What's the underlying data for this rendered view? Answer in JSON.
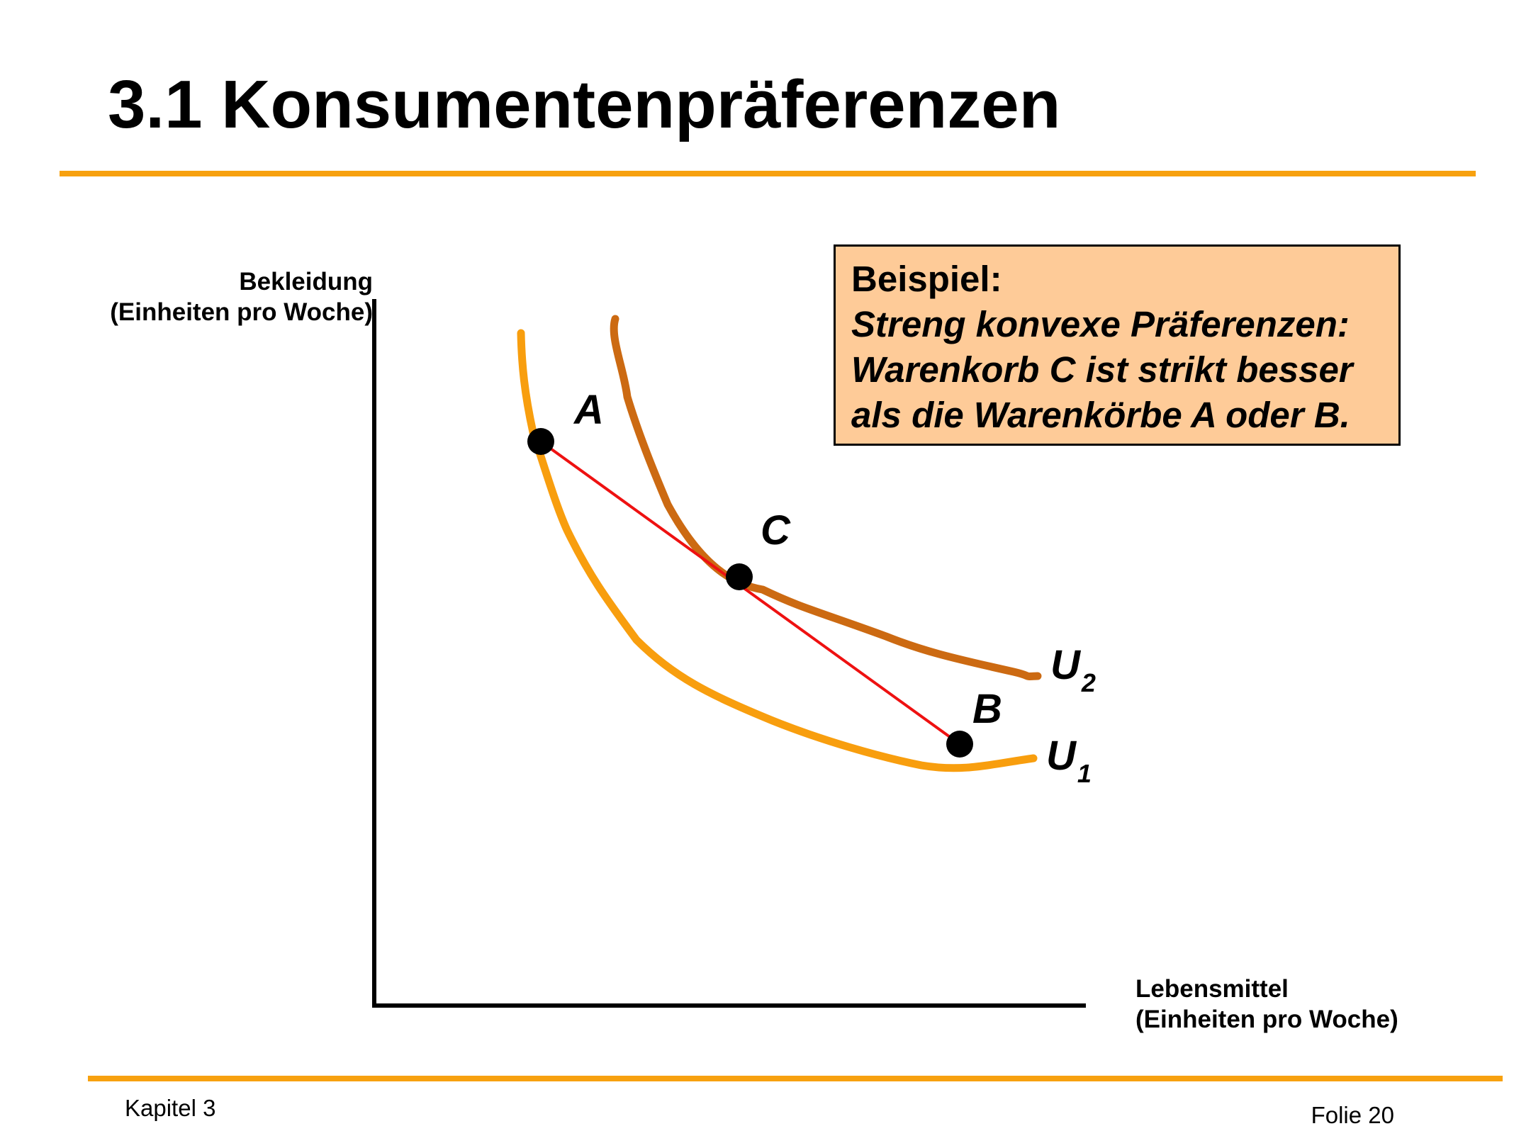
{
  "slide": {
    "title": "3.1 Konsumentenpräferenzen",
    "footer_left": "Kapitel 3",
    "footer_right": "Folie 20"
  },
  "axes": {
    "y_label_line1": "Bekleidung",
    "y_label_line2": "(Einheiten pro Woche)",
    "x_label_line1": "Lebensmittel",
    "x_label_line2": "(Einheiten pro Woche)"
  },
  "callout": {
    "heading": "Beispiel:",
    "line1": "Streng konvexe Präferenzen:",
    "line2": "Warenkorb C ist strikt besser",
    "line3": "als die Warenkörbe A oder B."
  },
  "points": {
    "a": "A",
    "b": "B",
    "c": "C"
  },
  "curves": {
    "u1_base": "U",
    "u1_sub": "1",
    "u2_base": "U",
    "u2_sub": "2"
  },
  "colors": {
    "accent_rule": "#f7a10f",
    "curve_u1": "#f89e0e",
    "curve_u2": "#cc6a12",
    "segment": "#ee1111",
    "callout_fill": "#fecb98"
  }
}
